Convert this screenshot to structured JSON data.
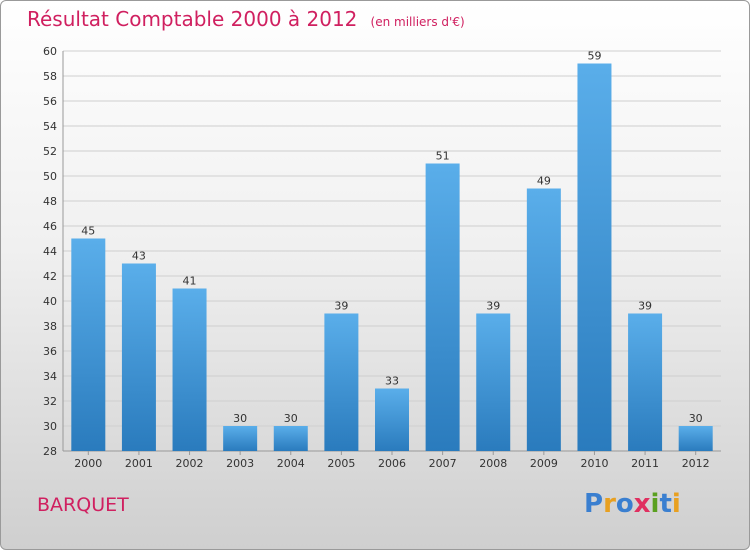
{
  "header": {
    "title": "Résultat Comptable 2000 à 2012",
    "subtitle": "(en milliers d'€)"
  },
  "footer": {
    "commune": "BARQUET",
    "logo_text": "Proxiti",
    "logo_colors": [
      "#3a7fd0",
      "#e8a020",
      "#3a7fd0",
      "#e03060",
      "#5aa020",
      "#3a7fd0",
      "#e8a020"
    ]
  },
  "colors": {
    "title": "#d02060",
    "bar_top": "#5aaeea",
    "bar_bottom": "#2a7bbd",
    "grid": "#cfcfcf"
  },
  "chart_data": {
    "type": "bar",
    "categories": [
      "2000",
      "2001",
      "2002",
      "2003",
      "2004",
      "2005",
      "2006",
      "2007",
      "2008",
      "2009",
      "2010",
      "2011",
      "2012"
    ],
    "values": [
      45,
      43,
      41,
      30,
      30,
      39,
      33,
      51,
      39,
      49,
      59,
      39,
      30
    ],
    "title": "Résultat Comptable 2000 à 2012",
    "xlabel": "",
    "ylabel": "",
    "ylim": [
      28,
      60
    ],
    "ytick_step": 2,
    "grid": true,
    "legend": "none"
  }
}
